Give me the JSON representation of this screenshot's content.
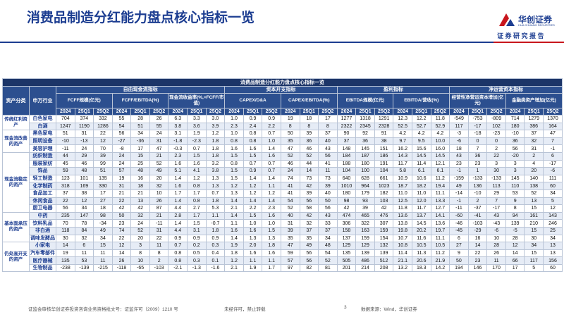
{
  "header": {
    "title": "消费品制造分红能力盘点核心指标一览",
    "brand": "华创证券",
    "brand_en": "HUA CHUANG SECURITIES",
    "report_type": "证 券 研 究 报 告"
  },
  "table": {
    "title": "消费品制造分红能力盘点核心指标一览",
    "col_headers": [
      "资产分类",
      "申万行业"
    ],
    "groups": [
      {
        "label": "自由现金流指标",
        "metrics": [
          "FCFF规模(亿元)",
          "FCFF/EBITDA(%)",
          "现金流收益率(%,=FCFF/市值)"
        ]
      },
      {
        "label": "资本开支指标",
        "metrics": [
          "CAPEX/D&A",
          "CAPEX/EBITDA(%)"
        ]
      },
      {
        "label": "盈利指标",
        "metrics": [
          "EBITDA规模(亿元)",
          "EBITDA/营收(%)"
        ]
      },
      {
        "label": "净运营资本指标",
        "metrics": [
          "经营性净营运资本增加(亿元)",
          "金融类资产增加(亿元)"
        ]
      }
    ],
    "periods": [
      "2024",
      "25Q1",
      "25Q2"
    ],
    "sections": [
      {
        "category": "传统红利资产",
        "rows": [
          {
            "industry": "白色家电",
            "values": [
              "704",
              "374",
              "332",
              "55",
              "28",
              "26",
              "6.3",
              "3.3",
              "3.0",
              "1.0",
              "0.9",
              "0.9",
              "19",
              "18",
              "17",
              "1277",
              "1318",
              "1291",
              "12.3",
              "12.2",
              "11.8",
              "-549",
              "-753",
              "-809",
              "714",
              "1279",
              "1370"
            ]
          },
          {
            "industry": "白酒",
            "values": [
              "1247",
              "1190",
              "1286",
              "54",
              "51",
              "55",
              "3.8",
              "3.6",
              "3.9",
              "2.3",
              "2.4",
              "2.2",
              "8",
              "8",
              "8",
              "2322",
              "2345",
              "2328",
              "52.5",
              "52.7",
              "52.9",
              "117",
              "-17",
              "102",
              "180",
              "386",
              "164"
            ]
          }
        ]
      },
      {
        "category": "现金流改善的资产",
        "rows": [
          {
            "industry": "黑色家电",
            "values": [
              "51",
              "31",
              "22",
              "56",
              "34",
              "24",
              "3.1",
              "1.9",
              "1.2",
              "1.0",
              "0.8",
              "0.7",
              "50",
              "39",
              "37",
              "90",
              "92",
              "91",
              "4.2",
              "4.2",
              "4.2",
              "-3",
              "-18",
              "-23",
              "-10",
              "37",
              "47"
            ]
          },
          {
            "industry": "照明设备",
            "values": [
              "-10",
              "-13",
              "12",
              "-27",
              "-36",
              "31",
              "-1.8",
              "-2.3",
              "1.8",
              "0.8",
              "0.8",
              "1.0",
              "35",
              "36",
              "40",
              "37",
              "36",
              "38",
              "9.7",
              "9.5",
              "10.0",
              "-6",
              "0",
              "0",
              "36",
              "32",
              "7"
            ]
          },
          {
            "industry": "美容护理",
            "values": [
              "-11",
              "24",
              "70",
              "-8",
              "17",
              "47",
              "-0.3",
              "0.7",
              "1.8",
              "1.6",
              "1.6",
              "1.4",
              "47",
              "46",
              "43",
              "148",
              "145",
              "151",
              "16.2",
              "15.6",
              "16.0",
              "18",
              "7",
              "2",
              "56",
              "31",
              "-1"
            ]
          }
        ]
      },
      {
        "category": "现金流稳定的资产",
        "rows": [
          {
            "industry": "纺织制造",
            "values": [
              "44",
              "29",
              "39",
              "24",
              "15",
              "21",
              "2.3",
              "1.5",
              "1.8",
              "1.5",
              "1.5",
              "1.6",
              "52",
              "52",
              "56",
              "184",
              "187",
              "186",
              "14.3",
              "14.5",
              "14.5",
              "43",
              "36",
              "22",
              "-20",
              "2",
              "6"
            ]
          },
          {
            "industry": "服装家纺",
            "values": [
              "45",
              "46",
              "99",
              "24",
              "25",
              "52",
              "1.6",
              "1.6",
              "3.2",
              "0.8",
              "0.7",
              "0.7",
              "46",
              "44",
              "41",
              "188",
              "180",
              "191",
              "11.7",
              "11.4",
              "12.1",
              "23",
              "23",
              "3",
              "3",
              "4",
              "-17"
            ]
          },
          {
            "industry": "饰品",
            "values": [
              "59",
              "48",
              "51",
              "57",
              "48",
              "49",
              "5.1",
              "4.1",
              "3.8",
              "1.5",
              "0.9",
              "0.7",
              "24",
              "14",
              "11",
              "104",
              "100",
              "104",
              "5.8",
              "6.1",
              "6.1",
              "-1",
              "1",
              "30",
              "3",
              "20",
              "-6"
            ]
          },
          {
            "industry": "轻工制造",
            "values": [
              "123",
              "101",
              "135",
              "19",
              "16",
              "20",
              "1.4",
              "1.2",
              "1.3",
              "1.5",
              "1.4",
              "1.4",
              "74",
              "73",
              "73",
              "640",
              "628",
              "661",
              "10.9",
              "10.6",
              "11.2",
              "-159",
              "-133",
              "-133",
              "145",
              "140",
              "111"
            ]
          },
          {
            "industry": "化学制药",
            "values": [
              "318",
              "169",
              "330",
              "31",
              "18",
              "32",
              "1.6",
              "0.8",
              "1.3",
              "1.2",
              "1.2",
              "1.1",
              "41",
              "42",
              "39",
              "1010",
              "964",
              "1023",
              "18.7",
              "18.2",
              "19.4",
              "49",
              "136",
              "113",
              "110",
              "138",
              "60"
            ]
          },
          {
            "industry": "食品加工",
            "values": [
              "37",
              "38",
              "17",
              "21",
              "21",
              "10",
              "1.7",
              "1.7",
              "0.7",
              "1.3",
              "1.2",
              "1.2",
              "41",
              "39",
              "40",
              "180",
              "179",
              "182",
              "11.0",
              "11.0",
              "11.1",
              "-14",
              "-10",
              "29",
              "53",
              "52",
              "34"
            ]
          },
          {
            "industry": "休闲食品",
            "values": [
              "22",
              "12",
              "27",
              "22",
              "13",
              "26",
              "1.4",
              "0.8",
              "1.8",
              "1.4",
              "1.4",
              "1.4",
              "54",
              "56",
              "50",
              "98",
              "93",
              "103",
              "12.5",
              "12.0",
              "13.3",
              "-1",
              "2",
              "7",
              "9",
              "13",
              "5"
            ]
          },
          {
            "industry": "厨卫电器",
            "values": [
              "56",
              "34",
              "18",
              "42",
              "42",
              "87",
              "4.4",
              "2.7",
              "5.3",
              "2.1",
              "2.2",
              "2.3",
              "52",
              "58",
              "56",
              "42",
              "39",
              "42",
              "11.8",
              "11.7",
              "12.7",
              "-11",
              "-37",
              "-17",
              "8",
              "15",
              "12"
            ]
          }
        ]
      },
      {
        "category": "基本面承压的资产",
        "rows": [
          {
            "industry": "中药",
            "values": [
              "235",
              "147",
              "98",
              "50",
              "32",
              "21",
              "2.8",
              "1.7",
              "1.1",
              "1.4",
              "1.5",
              "1.6",
              "40",
              "42",
              "43",
              "474",
              "465",
              "476",
              "13.6",
              "13.7",
              "14.1",
              "-60",
              "-41",
              "43",
              "94",
              "161",
              "143"
            ]
          },
          {
            "industry": "饮料乳品",
            "values": [
              "70",
              "78",
              "-34",
              "23",
              "24",
              "-11",
              "1.4",
              "1.5",
              "-0.7",
              "1.1",
              "1.0",
              "1.0",
              "31",
              "32",
              "33",
              "306",
              "322",
              "307",
              "13.8",
              "14.5",
              "13.6",
              "-46",
              "-103",
              "-43",
              "139",
              "210",
              "246"
            ]
          },
          {
            "industry": "非白酒",
            "values": [
              "118",
              "84",
              "49",
              "74",
              "52",
              "31",
              "4.4",
              "3.1",
              "1.8",
              "1.6",
              "1.6",
              "1.5",
              "39",
              "37",
              "37",
              "158",
              "163",
              "159",
              "19.8",
              "20.2",
              "19.7",
              "-45",
              "-29",
              "-6",
              "-5",
              "15",
              "25"
            ]
          },
          {
            "industry": "调味发酵品",
            "values": [
              "30",
              "32",
              "34",
              "22",
              "20",
              "22",
              "0.9",
              "0.9",
              "0.9",
              "1.4",
              "1.3",
              "1.3",
              "35",
              "35",
              "34",
              "137",
              "159",
              "154",
              "10.7",
              "11.6",
              "11.1",
              "6",
              "16",
              "10",
              "28",
              "30",
              "34"
            ]
          }
        ]
      },
      {
        "category": "仍处高开支的资产",
        "rows": [
          {
            "industry": "小家电",
            "values": [
              "14",
              "6",
              "15",
              "12",
              "3",
              "11",
              "0.7",
              "0.2",
              "0.3",
              "1.9",
              "2.0",
              "1.8",
              "47",
              "49",
              "48",
              "129",
              "129",
              "132",
              "10.8",
              "10.5",
              "10.5",
              "27",
              "14",
              "28",
              "12",
              "34",
              "13"
            ]
          },
          {
            "industry": "汽车零部件",
            "values": [
              "19",
              "11",
              "11",
              "14",
              "8",
              "8",
              "0.8",
              "0.5",
              "0.4",
              "1.8",
              "1.6",
              "1.6",
              "59",
              "56",
              "54",
              "135",
              "139",
              "139",
              "11.4",
              "11.3",
              "11.2",
              "9",
              "22",
              "26",
              "14",
              "15",
              "13"
            ]
          },
          {
            "industry": "医疗器械",
            "values": [
              "135",
              "53",
              "11",
              "26",
              "10",
              "2",
              "0.8",
              "0.3",
              "0.1",
              "1.2",
              "1.1",
              "1.1",
              "57",
              "56",
              "52",
              "505",
              "486",
              "512",
              "21.1",
              "20.6",
              "21.9",
              "50",
              "23",
              "11",
              "66",
              "117",
              "156"
            ]
          },
          {
            "industry": "生物制品",
            "values": [
              "-238",
              "-139",
              "-215",
              "-118",
              "-65",
              "-103",
              "-2.1",
              "-1.3",
              "-1.6",
              "2.1",
              "1.9",
              "1.7",
              "97",
              "82",
              "81",
              "201",
              "214",
              "208",
              "13.2",
              "18.3",
              "14.2",
              "194",
              "146",
              "170",
              "17",
              "5",
              "60"
            ]
          }
        ]
      }
    ]
  },
  "footer": {
    "license": "证监会审核华创证券投资咨询业务资格批文号：证监许可（2009）1210 号",
    "notice": "未经许可，禁止转载",
    "page": "3",
    "source": "数据来源：Wind，华创证券"
  }
}
